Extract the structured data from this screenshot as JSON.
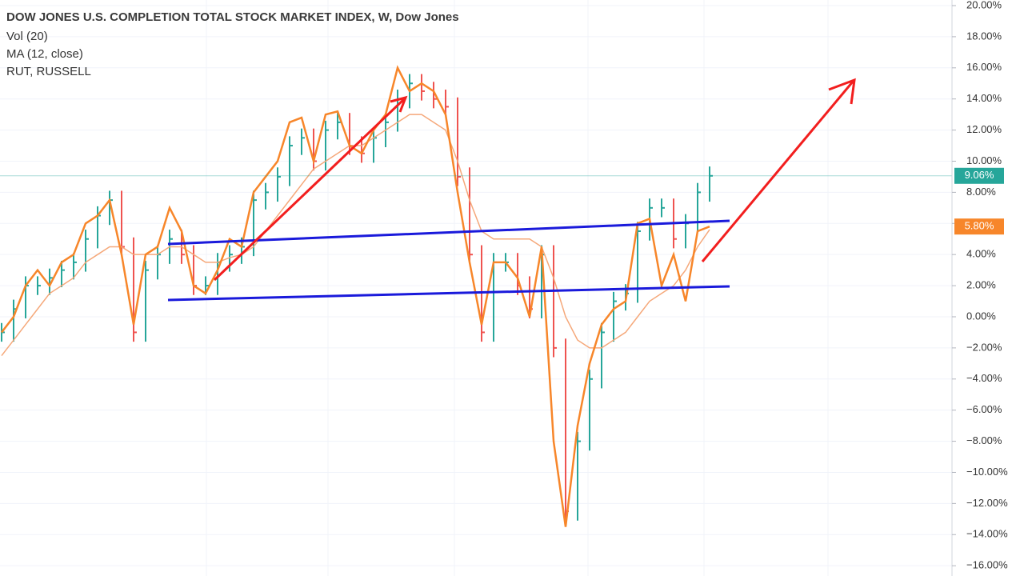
{
  "chart_data": {
    "type": "line",
    "title": "DOW JONES U.S. COMPLETION TOTAL STOCK MARKET INDEX, W, Dow Jones",
    "indicators": [
      "Vol (20)"
    ],
    "categories": [
      null,
      null,
      null,
      null,
      null,
      null,
      null,
      null,
      null,
      null,
      null,
      null,
      null,
      null,
      null,
      null,
      null,
      null,
      null,
      null,
      null,
      null,
      null,
      null,
      null,
      null,
      null,
      null,
      null,
      null,
      null,
      null,
      null,
      null,
      null,
      null,
      null,
      null,
      null,
      null,
      null,
      null,
      null,
      null,
      null,
      null,
      null,
      null,
      null,
      null,
      null,
      null,
      null,
      null,
      null,
      null,
      null,
      null,
      null,
      null
    ],
    "series": [
      {
        "style": "bars",
        "color": "#26a69a",
        "down_color": "#ef5350",
        "last_label": "9.06%",
        "values": [
          -1,
          0.5,
          2,
          2,
          2.5,
          3,
          3.5,
          5,
          6.5,
          7.5,
          4.5,
          -1,
          3,
          4,
          5,
          4,
          2,
          2,
          3.5,
          4,
          4.5,
          7.5,
          8,
          9,
          11,
          11.5,
          10,
          12,
          12.5,
          11,
          10.5,
          11.5,
          12.5,
          14,
          15,
          14.5,
          14,
          13.5,
          9,
          4,
          -1,
          3.5,
          3.5,
          2,
          0.5,
          4,
          -2,
          -12.5,
          -8,
          -4,
          -1,
          1,
          1.5,
          5.5,
          7,
          7,
          5,
          6,
          8,
          9.06
        ]
      },
      {
        "name": "MA (12, close)",
        "color": "#f5a87a",
        "values": [
          -2.5,
          -1.5,
          -0.5,
          0.5,
          1.5,
          2,
          2.5,
          3.5,
          4,
          4.5,
          4.5,
          4,
          4,
          4,
          4.5,
          4.5,
          4,
          3.5,
          3.5,
          3.8,
          4,
          4.5,
          5.5,
          6.5,
          7.5,
          8.5,
          9.5,
          10,
          10.5,
          11,
          11,
          11.5,
          12,
          12.5,
          13,
          13,
          12.5,
          12,
          10,
          7.5,
          5.5,
          5,
          5,
          5,
          5,
          4.5,
          2.5,
          0,
          -1.5,
          -2,
          -2,
          -1.5,
          -1,
          0,
          1,
          1.5,
          2,
          3,
          4.5,
          5.6
        ]
      },
      {
        "name": "RUT, RUSSELL",
        "color": "#f7862a",
        "last_label": "5.80%",
        "values": [
          -1,
          0,
          2,
          3,
          2,
          3.5,
          4,
          6,
          6.5,
          7.5,
          4,
          -0.5,
          4,
          4.5,
          7,
          5.5,
          2,
          1.5,
          3,
          5,
          4.5,
          8,
          9,
          10,
          12.5,
          12.8,
          10,
          13,
          13.2,
          11,
          10.5,
          12,
          13,
          16,
          14.5,
          15,
          14.5,
          13,
          8,
          3.5,
          -0.5,
          3.5,
          3.5,
          2.5,
          0,
          4.5,
          -8,
          -13.5,
          -7,
          -3,
          -0.5,
          0.5,
          1,
          6,
          6.3,
          2,
          4,
          1,
          5.5,
          5.8
        ]
      }
    ],
    "ylim": [
      -16.66,
      20.36
    ],
    "yticks": [
      {
        "value": 20,
        "label": "20.00%"
      },
      {
        "value": 18,
        "label": "18.00%"
      },
      {
        "value": 16,
        "label": "16.00%"
      },
      {
        "value": 14,
        "label": "14.00%"
      },
      {
        "value": 12,
        "label": "12.00%"
      },
      {
        "value": 10,
        "label": "10.00%"
      },
      {
        "value": 8,
        "label": "8.00%"
      },
      {
        "value": 6,
        "label": "6.00%"
      },
      {
        "value": 4,
        "label": "4.00%"
      },
      {
        "value": 2,
        "label": "2.00%"
      },
      {
        "value": 0,
        "label": "0.00%"
      },
      {
        "value": -2,
        "label": "−2.00%"
      },
      {
        "value": -4,
        "label": "−4.00%"
      },
      {
        "value": -6,
        "label": "−6.00%"
      },
      {
        "value": -8,
        "label": "−8.00%"
      },
      {
        "value": -10,
        "label": "−10.00%"
      },
      {
        "value": -12,
        "label": "−12.00%"
      },
      {
        "value": -14,
        "label": "−14.00%"
      },
      {
        "value": -16,
        "label": "−16.00%"
      }
    ],
    "grid": true
  }
}
